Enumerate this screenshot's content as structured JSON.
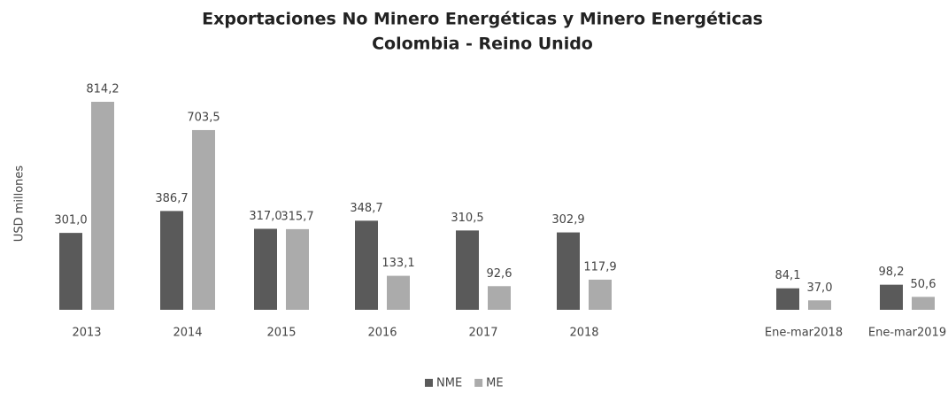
{
  "chart_data": {
    "type": "bar",
    "title": "Exportaciones No Minero Energéticas y Minero Energéticas",
    "subtitle": "Colombia - Reino Unido",
    "y_label": "USD millones",
    "categories": [
      "2013",
      "2014",
      "2015",
      "2016",
      "2017",
      "2018",
      "Ene-mar2018",
      "Ene-mar2019"
    ],
    "series": [
      {
        "name": "NME",
        "color": "#5a5a5a",
        "values": [
          301.0,
          386.7,
          317.0,
          348.7,
          310.5,
          302.9,
          84.1,
          98.2
        ],
        "value_labels": [
          "301,0",
          "386,7",
          "317,0",
          "348,7",
          "310,5",
          "302,9",
          "84,1",
          "98,2"
        ]
      },
      {
        "name": "ME",
        "color": "#ababab",
        "values": [
          814.2,
          703.5,
          315.7,
          133.1,
          92.6,
          117.9,
          37.0,
          50.6
        ],
        "value_labels": [
          "814,2",
          "703,5",
          "315,7",
          "133,1",
          "92,6",
          "117,9",
          "37,0",
          "50,6"
        ]
      }
    ],
    "legend": "bottom"
  }
}
